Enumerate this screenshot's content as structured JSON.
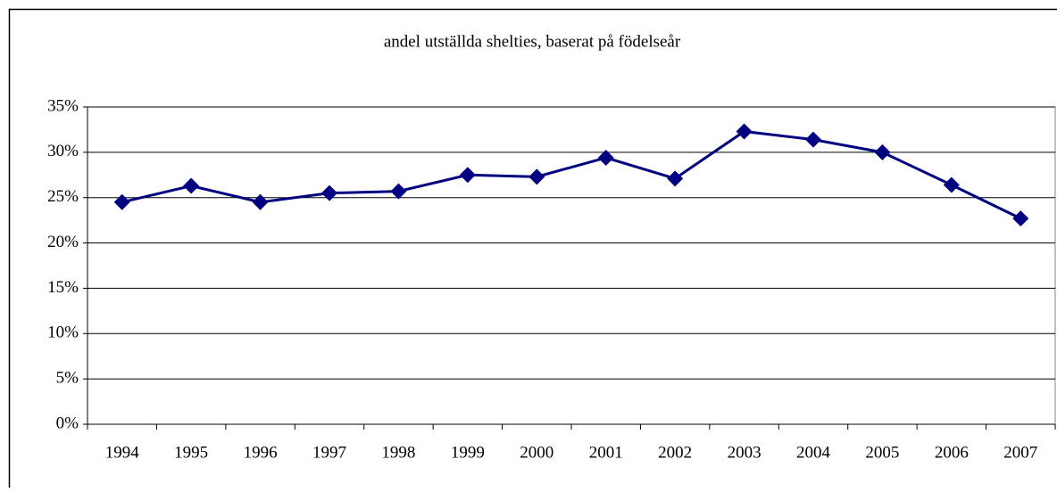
{
  "chart_data": {
    "type": "line",
    "title": "andel utställda shelties, baserat på födelseår",
    "categories": [
      "1994",
      "1995",
      "1996",
      "1997",
      "1998",
      "1999",
      "2000",
      "2001",
      "2002",
      "2003",
      "2004",
      "2005",
      "2006",
      "2007"
    ],
    "series": [
      {
        "color": "#000080",
        "values": [
          24.5,
          26.3,
          24.5,
          25.5,
          25.7,
          27.5,
          27.3,
          29.4,
          27.1,
          32.3,
          31.4,
          30.0,
          26.4,
          22.7
        ]
      }
    ],
    "ylim": [
      0,
      35
    ],
    "yticks": [
      {
        "value": 0,
        "label": "0%"
      },
      {
        "value": 5,
        "label": "5%"
      },
      {
        "value": 10,
        "label": "10%"
      },
      {
        "value": 15,
        "label": "15%"
      },
      {
        "value": 20,
        "label": "20%"
      },
      {
        "value": 25,
        "label": "25%"
      },
      {
        "value": 30,
        "label": "30%"
      },
      {
        "value": 35,
        "label": "35%"
      }
    ],
    "grid": true
  }
}
